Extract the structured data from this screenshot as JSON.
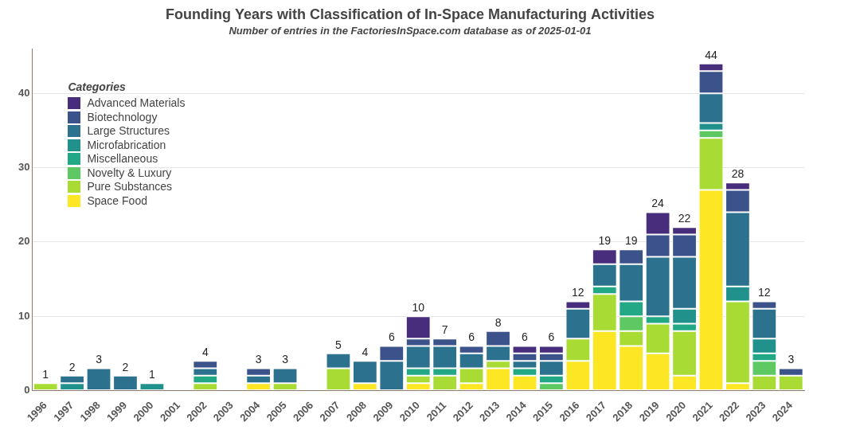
{
  "chart_data": {
    "type": "bar",
    "title": "Founding Years with Classification of In-Space Manufacturing Activities",
    "subtitle": "Number of entries in the FactoriesInSpace.com database as of 2025-01-01",
    "legend_title": "Categories",
    "legend": "upper left",
    "stacked": true,
    "grid": true,
    "categories": [
      "1996",
      "1997",
      "1998",
      "1999",
      "2000",
      "2001",
      "2002",
      "2003",
      "2004",
      "2005",
      "2006",
      "2007",
      "2008",
      "2009",
      "2010",
      "2011",
      "2012",
      "2013",
      "2014",
      "2015",
      "2016",
      "2017",
      "2018",
      "2019",
      "2020",
      "2021",
      "2022",
      "2023",
      "2024"
    ],
    "series": [
      {
        "name": "Space Food",
        "color": "#fde725",
        "values": [
          0,
          0,
          0,
          0,
          0,
          0,
          0,
          0,
          1,
          0,
          0,
          0,
          1,
          0,
          1,
          0,
          1,
          3,
          2,
          0,
          4,
          8,
          6,
          5,
          2,
          27,
          1,
          0,
          0
        ]
      },
      {
        "name": "Pure Substances",
        "color": "#a8db34",
        "values": [
          1,
          0,
          0,
          0,
          0,
          0,
          1,
          0,
          0,
          1,
          0,
          3,
          0,
          0,
          1,
          2,
          2,
          1,
          0,
          0,
          3,
          5,
          2,
          4,
          6,
          7,
          11,
          2,
          2
        ]
      },
      {
        "name": "Novelty & Luxury",
        "color": "#5ec962",
        "values": [
          0,
          0,
          0,
          0,
          0,
          0,
          0,
          0,
          0,
          0,
          0,
          0,
          0,
          0,
          0,
          0,
          0,
          0,
          0,
          1,
          0,
          0,
          2,
          0,
          0,
          1,
          0,
          2,
          0
        ]
      },
      {
        "name": "Miscellaneous",
        "color": "#22a884",
        "values": [
          0,
          0,
          0,
          0,
          0,
          0,
          1,
          0,
          0,
          0,
          0,
          0,
          0,
          0,
          1,
          1,
          0,
          0,
          1,
          1,
          0,
          1,
          2,
          1,
          1,
          0,
          0,
          1,
          0
        ]
      },
      {
        "name": "Microfabrication",
        "color": "#21918c",
        "values": [
          0,
          1,
          0,
          0,
          1,
          0,
          0,
          0,
          0,
          0,
          0,
          0,
          0,
          0,
          0,
          0,
          0,
          0,
          0,
          0,
          0,
          0,
          0,
          0,
          2,
          1,
          2,
          2,
          0
        ]
      },
      {
        "name": "Large Structures",
        "color": "#2c728e",
        "values": [
          0,
          1,
          3,
          2,
          0,
          0,
          1,
          0,
          1,
          2,
          0,
          2,
          3,
          4,
          3,
          3,
          2,
          2,
          1,
          2,
          4,
          3,
          5,
          8,
          7,
          4,
          10,
          4,
          0
        ]
      },
      {
        "name": "Biotechnology",
        "color": "#3b528b",
        "values": [
          0,
          0,
          0,
          0,
          0,
          0,
          1,
          0,
          1,
          0,
          0,
          0,
          0,
          2,
          1,
          1,
          1,
          2,
          1,
          1,
          0,
          0,
          2,
          3,
          3,
          3,
          3,
          1,
          1
        ]
      },
      {
        "name": "Advanced Materials",
        "color": "#472d7b",
        "values": [
          0,
          0,
          0,
          0,
          0,
          0,
          0,
          0,
          0,
          0,
          0,
          0,
          0,
          0,
          3,
          0,
          0,
          0,
          1,
          1,
          1,
          2,
          0,
          3,
          1,
          1,
          1,
          0,
          0
        ]
      }
    ],
    "totals": [
      1,
      2,
      3,
      2,
      1,
      null,
      4,
      null,
      3,
      3,
      null,
      5,
      4,
      6,
      10,
      7,
      6,
      8,
      6,
      6,
      12,
      19,
      19,
      24,
      22,
      44,
      28,
      12,
      3
    ],
    "ylim": [
      0,
      46
    ],
    "yticks": [
      0,
      10,
      20,
      30,
      40
    ]
  }
}
